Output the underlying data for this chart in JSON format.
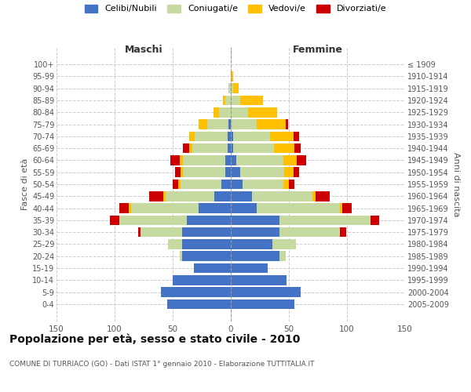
{
  "age_groups": [
    "0-4",
    "5-9",
    "10-14",
    "15-19",
    "20-24",
    "25-29",
    "30-34",
    "35-39",
    "40-44",
    "45-49",
    "50-54",
    "55-59",
    "60-64",
    "65-69",
    "70-74",
    "75-79",
    "80-84",
    "85-89",
    "90-94",
    "95-99",
    "100+"
  ],
  "birth_years": [
    "2005-2009",
    "2000-2004",
    "1995-1999",
    "1990-1994",
    "1985-1989",
    "1980-1984",
    "1975-1979",
    "1970-1974",
    "1965-1969",
    "1960-1964",
    "1955-1959",
    "1950-1954",
    "1945-1949",
    "1940-1944",
    "1935-1939",
    "1930-1934",
    "1925-1929",
    "1920-1924",
    "1915-1919",
    "1910-1914",
    "≤ 1909"
  ],
  "colors": {
    "celibi": "#4472c4",
    "coniugati": "#c5d9a0",
    "vedovi": "#ffc000",
    "divorziati": "#cc0000"
  },
  "maschi": {
    "celibi": [
      55,
      60,
      50,
      32,
      42,
      42,
      42,
      38,
      28,
      14,
      8,
      5,
      5,
      3,
      3,
      2,
      0,
      0,
      0,
      0,
      0
    ],
    "coniugati": [
      0,
      0,
      0,
      0,
      2,
      12,
      36,
      58,
      58,
      42,
      35,
      36,
      36,
      30,
      28,
      18,
      10,
      5,
      2,
      0,
      0
    ],
    "vedovi": [
      0,
      0,
      0,
      0,
      0,
      0,
      0,
      0,
      2,
      2,
      2,
      2,
      3,
      3,
      5,
      8,
      5,
      2,
      0,
      0,
      0
    ],
    "divorziati": [
      0,
      0,
      0,
      0,
      0,
      0,
      2,
      8,
      8,
      12,
      5,
      5,
      8,
      5,
      0,
      0,
      0,
      0,
      0,
      0,
      0
    ]
  },
  "femmine": {
    "celibi": [
      55,
      60,
      48,
      32,
      42,
      36,
      42,
      42,
      22,
      18,
      10,
      8,
      5,
      2,
      2,
      0,
      0,
      0,
      0,
      0,
      0
    ],
    "coniugati": [
      0,
      0,
      0,
      0,
      5,
      20,
      52,
      78,
      72,
      52,
      35,
      38,
      40,
      35,
      32,
      22,
      15,
      8,
      2,
      0,
      0
    ],
    "vedovi": [
      0,
      0,
      0,
      0,
      0,
      0,
      0,
      0,
      2,
      3,
      5,
      8,
      12,
      18,
      20,
      25,
      25,
      20,
      5,
      2,
      0
    ],
    "divorziati": [
      0,
      0,
      0,
      0,
      0,
      0,
      5,
      8,
      8,
      12,
      5,
      5,
      8,
      5,
      5,
      2,
      0,
      0,
      0,
      0,
      0
    ]
  },
  "xlim": 150,
  "title": "Popolazione per età, sesso e stato civile - 2010",
  "subtitle": "COMUNE DI TURRIACO (GO) - Dati ISTAT 1° gennaio 2010 - Elaborazione TUTTITALIA.IT",
  "xlabel_left": "Maschi",
  "xlabel_right": "Femmine",
  "ylabel_left": "Fasce di età",
  "ylabel_right": "Anni di nascita",
  "bg_color": "#ffffff",
  "grid_color": "#cccccc"
}
